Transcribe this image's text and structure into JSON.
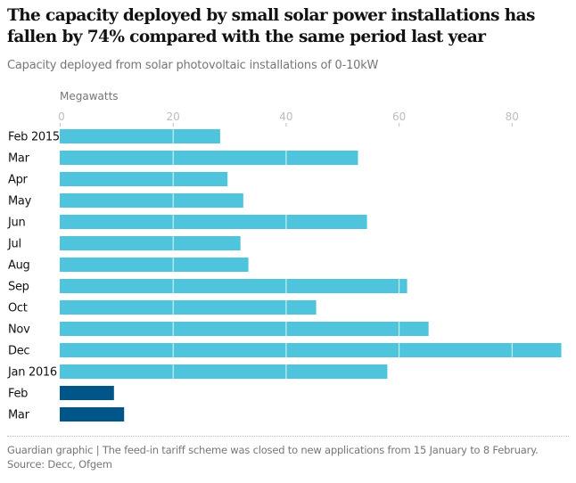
{
  "header": {
    "title": "The capacity deployed by small solar power installations has fallen by 74% compared with the same period last year",
    "subtitle": "Capacity deployed from solar photovoltaic installations of 0-10kW"
  },
  "footer": {
    "text": "Guardian graphic | The feed-in tariff scheme was closed to new applications from 15 January to 8 February. Source: Decc, Ofgem"
  },
  "chart_data": {
    "type": "bar",
    "orientation": "horizontal",
    "title": "The capacity deployed by small solar power installations has fallen by 74% compared with the same period last year",
    "subtitle": "Capacity deployed from solar photovoltaic installations of 0-10kW",
    "xlabel": "Megawatts",
    "ylabel": "",
    "xlim": [
      0,
      89
    ],
    "xticks": [
      0,
      20,
      40,
      60,
      80
    ],
    "grid": true,
    "categories": [
      "Feb 2015",
      "Mar",
      "Apr",
      "May",
      "Jun",
      "Jul",
      "Aug",
      "Sep",
      "Oct",
      "Nov",
      "Dec",
      "Jan 2016",
      "Feb",
      "Mar"
    ],
    "values": [
      28.4,
      52.8,
      29.7,
      32.5,
      54.4,
      32.0,
      33.4,
      61.5,
      45.4,
      65.3,
      88.8,
      58.0,
      9.6,
      11.4
    ],
    "highlight": [
      false,
      false,
      false,
      false,
      false,
      false,
      false,
      false,
      false,
      false,
      false,
      false,
      true,
      true
    ],
    "colors": {
      "default": "#4fc5dd",
      "highlight": "#005689",
      "tick": "#bdbdbd",
      "tick_label": "#bdbdbd",
      "category_label": "#121212",
      "gridline": "#ffffff"
    }
  }
}
